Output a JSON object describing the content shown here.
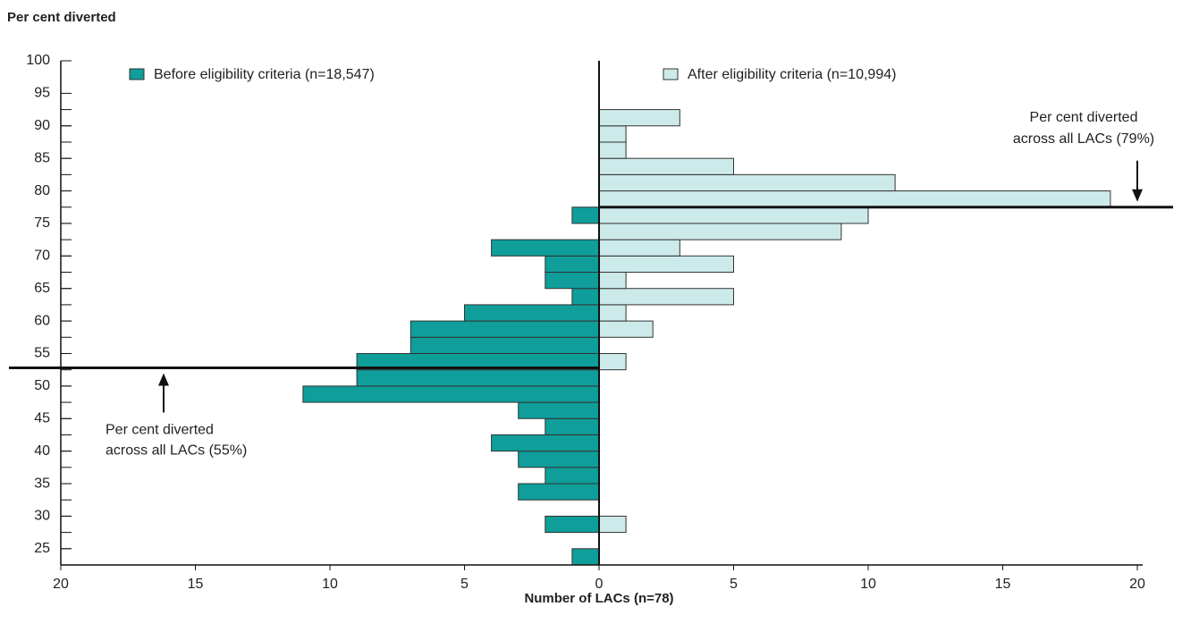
{
  "chart_data": {
    "type": "histogram",
    "orientation": "horizontal",
    "title": "Per cent diverted",
    "x_label": "Number of LACs (n=78)",
    "bins": [
      22.5,
      25,
      27.5,
      30,
      32.5,
      35,
      37.5,
      40,
      42.5,
      45,
      47.5,
      50,
      52.5,
      55,
      57.5,
      60,
      62.5,
      65,
      67.5,
      70,
      72.5,
      75,
      77.5,
      80,
      82.5,
      85,
      87.5,
      90,
      92.5
    ],
    "series": [
      {
        "name": "Before eligibility criteria (n=18,547)",
        "color": "#0f9e9a",
        "side": "left",
        "values": [
          1,
          0,
          2,
          0,
          3,
          2,
          3,
          4,
          2,
          3,
          11,
          9,
          9,
          7,
          7,
          5,
          1,
          2,
          2,
          4,
          0,
          1,
          0,
          0,
          0,
          0,
          0,
          0
        ]
      },
      {
        "name": "After eligibility criteria (n=10,994)",
        "color": "#cdeaea",
        "side": "right",
        "values": [
          0,
          0,
          1,
          0,
          0,
          0,
          0,
          0,
          0,
          0,
          0,
          0,
          1,
          0,
          2,
          1,
          5,
          1,
          5,
          3,
          9,
          10,
          19,
          11,
          5,
          1,
          1,
          3
        ]
      }
    ],
    "xlim": [
      -20,
      20
    ],
    "xticks": [
      {
        "value": -20,
        "label": "20"
      },
      {
        "value": -15,
        "label": "15"
      },
      {
        "value": -10,
        "label": "10"
      },
      {
        "value": -5,
        "label": "5"
      },
      0,
      5,
      10,
      15,
      20
    ],
    "ylim": [
      22.5,
      100
    ],
    "yticks": [
      25,
      30,
      35,
      40,
      45,
      50,
      55,
      60,
      65,
      70,
      75,
      80,
      85,
      90,
      95,
      100
    ],
    "reference_lines": [
      {
        "value": 52.8,
        "side": "left",
        "text": [
          "Per cent diverted",
          "across all LACs (55%)"
        ]
      },
      {
        "value": 77.5,
        "side": "right",
        "text": [
          "Per cent diverted",
          "across all LACs (79%)"
        ]
      }
    ]
  }
}
